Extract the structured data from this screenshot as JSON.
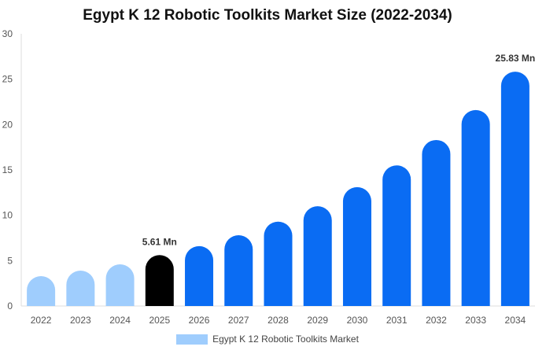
{
  "chart_data": {
    "type": "bar",
    "title": "Egypt K 12 Robotic Toolkits Market Size (2022-2034)",
    "xlabel": "",
    "ylabel": "",
    "ylim": [
      0,
      30
    ],
    "yticks": [
      0,
      5,
      10,
      15,
      20,
      25,
      30
    ],
    "grid": false,
    "legend_position": "bottom-center",
    "categories": [
      "2022",
      "2023",
      "2024",
      "2025",
      "2026",
      "2027",
      "2028",
      "2029",
      "2030",
      "2031",
      "2032",
      "2033",
      "2034"
    ],
    "series": [
      {
        "name": "Egypt K 12 Robotic Toolkits Market",
        "values": [
          3.3,
          3.9,
          4.6,
          5.61,
          6.6,
          7.8,
          9.3,
          11.0,
          13.1,
          15.5,
          18.3,
          21.6,
          25.83
        ]
      }
    ],
    "bar_colors": [
      "#9fcdfd",
      "#9fcdfd",
      "#9fcdfd",
      "#000000",
      "#0a6cf3",
      "#0a6cf3",
      "#0a6cf3",
      "#0a6cf3",
      "#0a6cf3",
      "#0a6cf3",
      "#0a6cf3",
      "#0a6cf3",
      "#0a6cf3"
    ],
    "legend_color": "#9fcdfd",
    "data_labels": [
      {
        "index": 3,
        "text": "5.61 Mn"
      },
      {
        "index": 12,
        "text": "25.83 Mn"
      }
    ]
  }
}
